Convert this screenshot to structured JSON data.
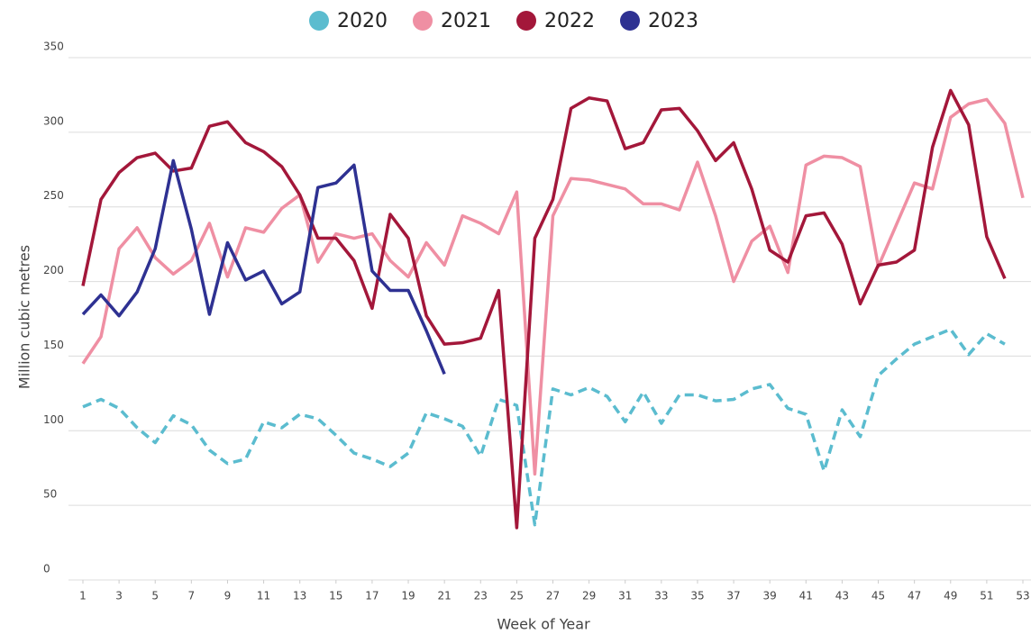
{
  "chart_data": {
    "type": "line",
    "xlabel": "Week of Year",
    "ylabel": "Million cubic metres",
    "x": [
      1,
      2,
      3,
      4,
      5,
      6,
      7,
      8,
      9,
      10,
      11,
      12,
      13,
      14,
      15,
      16,
      17,
      18,
      19,
      20,
      21,
      22,
      23,
      24,
      25,
      26,
      27,
      28,
      29,
      30,
      31,
      32,
      33,
      34,
      35,
      36,
      37,
      38,
      39,
      40,
      41,
      42,
      43,
      44,
      45,
      46,
      47,
      48,
      49,
      50,
      51,
      52,
      53
    ],
    "xlim": [
      1,
      53
    ],
    "xticks": [
      1,
      3,
      5,
      7,
      9,
      11,
      13,
      15,
      17,
      19,
      21,
      23,
      25,
      27,
      29,
      31,
      33,
      35,
      37,
      39,
      41,
      43,
      45,
      47,
      49,
      51,
      53
    ],
    "ylim": [
      0,
      350
    ],
    "yticks": [
      0,
      50,
      100,
      150,
      200,
      250,
      300,
      350
    ],
    "grid": true,
    "legend": "top",
    "series": [
      {
        "name": "2020",
        "color": "#5bbccf",
        "dashed": true,
        "values": [
          116,
          121,
          115,
          102,
          92,
          110,
          104,
          87,
          78,
          81,
          106,
          102,
          111,
          108,
          97,
          85,
          81,
          76,
          85,
          112,
          108,
          103,
          83,
          121,
          117,
          37,
          128,
          124,
          129,
          123,
          106,
          126,
          105,
          124,
          124,
          120,
          121,
          128,
          131,
          115,
          111,
          73,
          114,
          96,
          137,
          148,
          158,
          163,
          168,
          151,
          165,
          158,
          null
        ]
      },
      {
        "name": "2021",
        "color": "#ef8fa3",
        "values": [
          145,
          163,
          222,
          236,
          216,
          205,
          214,
          239,
          203,
          236,
          233,
          249,
          258,
          213,
          232,
          229,
          232,
          214,
          203,
          226,
          211,
          244,
          239,
          232,
          260,
          71,
          244,
          269,
          268,
          265,
          262,
          252,
          252,
          248,
          280,
          244,
          200,
          227,
          237,
          206,
          278,
          284,
          283,
          277,
          210,
          238,
          266,
          262,
          310,
          319,
          322,
          306,
          256
        ]
      },
      {
        "name": "2022",
        "color": "#a3173a",
        "values": [
          197,
          255,
          273,
          283,
          286,
          274,
          276,
          304,
          307,
          293,
          287,
          277,
          258,
          229,
          229,
          214,
          182,
          245,
          229,
          177,
          158,
          159,
          162,
          194,
          35,
          229,
          255,
          316,
          323,
          321,
          289,
          293,
          315,
          316,
          301,
          281,
          293,
          262,
          221,
          213,
          244,
          246,
          225,
          185,
          211,
          213,
          221,
          290,
          328,
          305,
          230,
          202,
          null
        ]
      },
      {
        "name": "2023",
        "color": "#2e3192",
        "values": [
          178,
          191,
          177,
          193,
          222,
          281,
          235,
          178,
          226,
          201,
          207,
          185,
          193,
          263,
          266,
          278,
          207,
          194,
          194,
          167,
          138,
          null,
          null,
          null,
          null,
          null,
          null,
          null,
          null,
          null,
          null,
          null,
          null,
          null,
          null,
          null,
          null,
          null,
          null,
          null,
          null,
          null,
          null,
          null,
          null,
          null,
          null,
          null,
          null,
          null,
          null,
          null,
          null
        ]
      }
    ]
  }
}
